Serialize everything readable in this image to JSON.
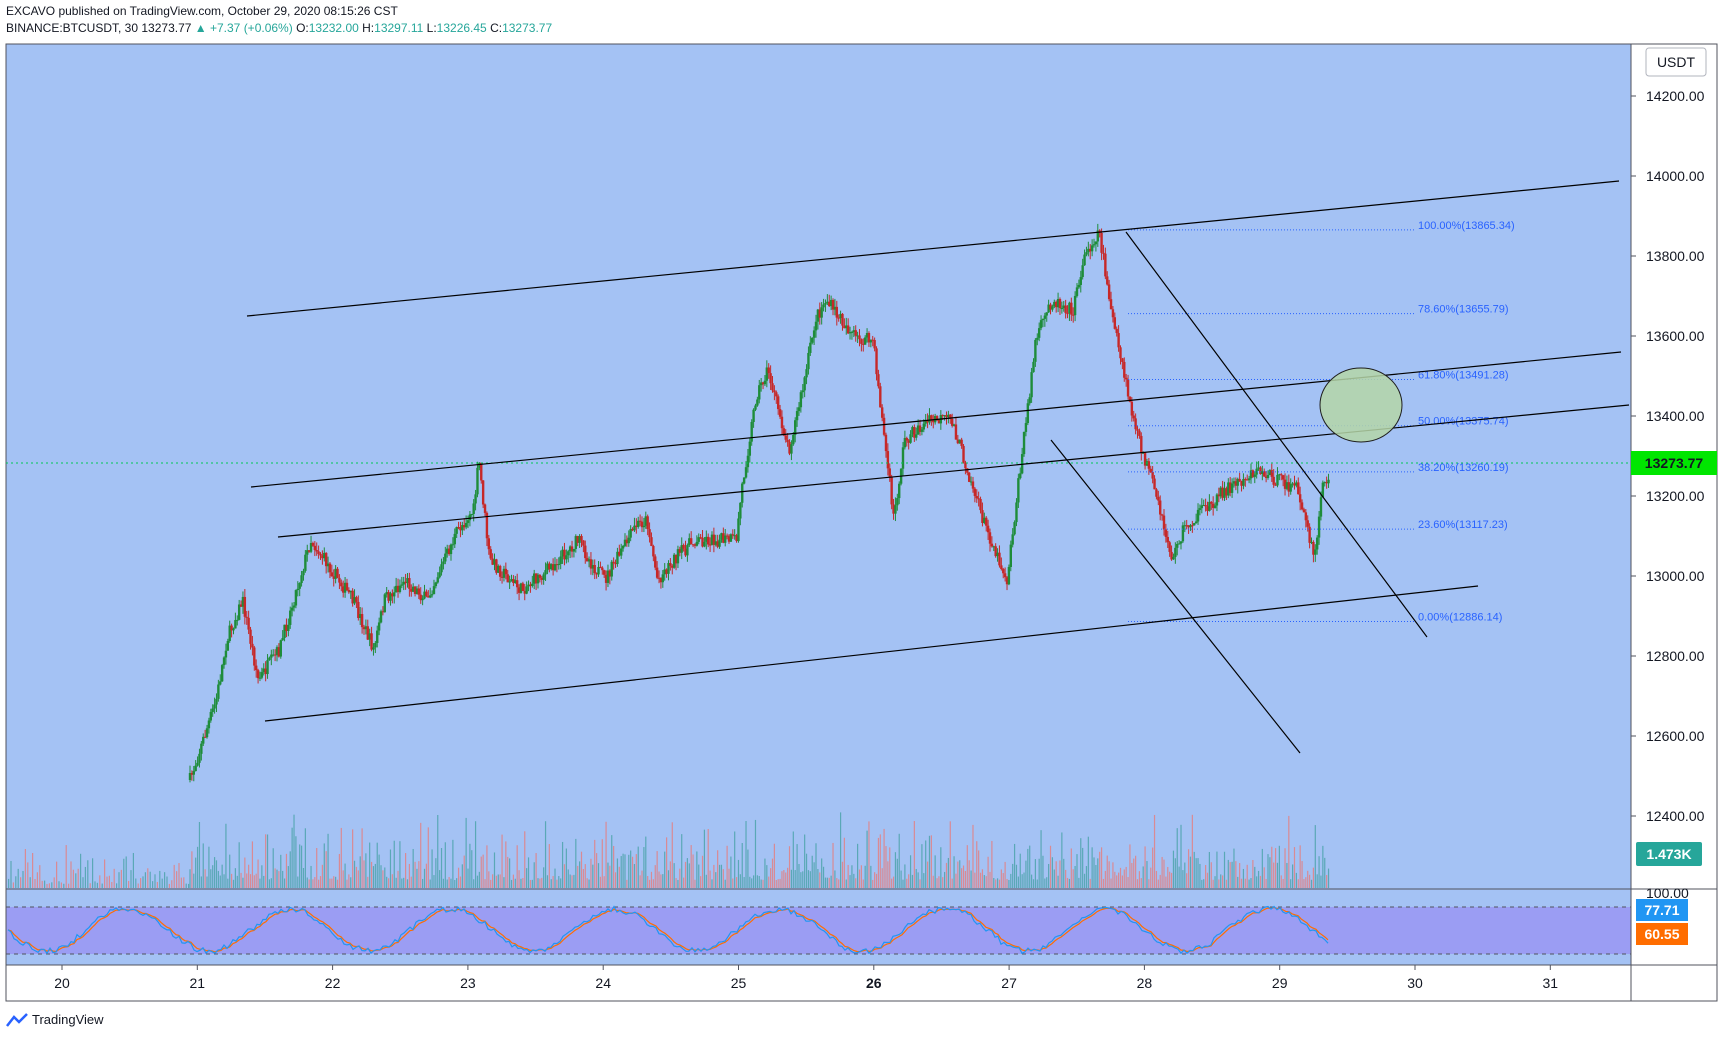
{
  "header": {
    "publisher_line": "EXCAVO published on TradingView.com, October 29, 2020 08:15:26 CST",
    "symbol": "BINANCE:BTCUSDT, 30",
    "last": "13273.77",
    "change": "▲ +7.37 (+0.06%)",
    "o_label": "O:",
    "o": "13232.00",
    "h_label": "H:",
    "h": "13297.11",
    "l_label": "L:",
    "l": "13226.45",
    "c_label": "C:",
    "c": "13273.77"
  },
  "currency": "USDT",
  "price_axis": {
    "ticks": [
      "14200.00",
      "14000.00",
      "13800.00",
      "13600.00",
      "13400.00",
      "13200.00",
      "13000.00",
      "12800.00",
      "12600.00",
      "12400.00"
    ],
    "current_price": "13273.77",
    "volume_label": "1.473K",
    "osc_top_label": "100.00",
    "osc_k_label": "77.71",
    "osc_d_label": "60.55"
  },
  "time_axis": [
    "20",
    "21",
    "22",
    "23",
    "24",
    "25",
    "26",
    "27",
    "28",
    "29",
    "30",
    "31"
  ],
  "fib_levels": [
    {
      "label": "100.00%(13865.34)",
      "price": 13865.34
    },
    {
      "label": "78.60%(13655.79)",
      "price": 13655.79
    },
    {
      "label": "61.80%(13491.28)",
      "price": 13491.28
    },
    {
      "label": "50.00%(13375.74)",
      "price": 13375.74
    },
    {
      "label": "38.20%(13260.19)",
      "price": 13260.19
    },
    {
      "label": "23.60%(13117.23)",
      "price": 13117.23
    },
    {
      "label": "0.00%(12886.14)",
      "price": 12886.14
    }
  ],
  "colors": {
    "chart_bg": "#a4c2f4",
    "osc_band": "#9b9df3",
    "up_candle": "#1e8c3a",
    "down_candle": "#c62828",
    "price_badge": "#00e600",
    "volume_badge": "#26a69a",
    "k_line": "#2196f3",
    "d_line": "#ff6d00"
  },
  "footer": {
    "brand": "TradingView"
  }
}
